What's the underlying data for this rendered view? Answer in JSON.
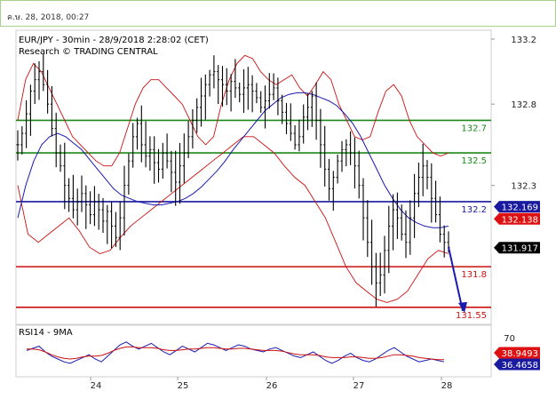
{
  "timestamp": "ค.ษ. 28, 2018, 00:27",
  "chart_data": {
    "type": "line",
    "title": "EUR/JPY - 30min - 28/9/2018 2:28:02 (CET)",
    "subtitle": "Research © TRADING CENTRAL",
    "x_labels": [
      "24",
      "25",
      "26",
      "27",
      "28"
    ],
    "price_axis": {
      "ticks": [
        "133.2",
        "132.8",
        "132.3"
      ],
      "ylim": [
        131.5,
        133.2
      ]
    },
    "levels": [
      {
        "label": "132.7",
        "value": 132.7,
        "color": "#1a8a1a"
      },
      {
        "label": "132.5",
        "value": 132.5,
        "color": "#1a8a1a"
      },
      {
        "label": "132.2",
        "value": 132.2,
        "color": "#1a1aa0"
      },
      {
        "label": "131.8",
        "value": 131.8,
        "color": "#cc1111"
      },
      {
        "label": "131.55",
        "value": 131.55,
        "color": "#cc1111"
      }
    ],
    "price_boxes": [
      {
        "label": "132.169",
        "value": 132.169,
        "color": "#1a1aa0"
      },
      {
        "label": "132.138",
        "value": 132.138,
        "color": "#dd1111"
      },
      {
        "label": "131.917",
        "value": 131.917,
        "color": "#000000"
      }
    ],
    "series": [
      {
        "name": "",
        "type": "price",
        "color": "#000000",
        "values": [
          132.55,
          132.62,
          132.74,
          132.88,
          132.95,
          133.0,
          132.92,
          132.8,
          132.65,
          132.5,
          132.42,
          132.3,
          132.22,
          132.15,
          132.2,
          132.25,
          132.18,
          132.12,
          132.2,
          132.15,
          132.08,
          132.14,
          132.05,
          131.98,
          132.1,
          132.3,
          132.45,
          132.6,
          132.68,
          132.55,
          132.48,
          132.52,
          132.44,
          132.4,
          132.5,
          132.45,
          132.38,
          132.32,
          132.42,
          132.5,
          132.6,
          132.7,
          132.78,
          132.85,
          132.92,
          132.98,
          133.0,
          132.95,
          132.92,
          132.88,
          132.94,
          132.9,
          132.86,
          132.9,
          132.92,
          132.88,
          132.84,
          132.78,
          132.82,
          132.86,
          132.9,
          132.82,
          132.75,
          132.68,
          132.62,
          132.55,
          132.6,
          132.72,
          132.78,
          132.85,
          132.7,
          132.55,
          132.4,
          132.28,
          132.35,
          132.45,
          132.52,
          132.55,
          132.5,
          132.42,
          132.3,
          132.1,
          131.95,
          131.8,
          131.7,
          131.75,
          131.9,
          132.05,
          132.15,
          132.1,
          132.0,
          131.95,
          132.1,
          132.25,
          132.35,
          132.42,
          132.35,
          132.22,
          132.12,
          132.0,
          131.95,
          131.92
        ],
        "range": [
          131.62,
          133.12
        ]
      },
      {
        "name": "",
        "type": "moving-average",
        "color": "#1a1ab0",
        "values": [
          132.1,
          132.3,
          132.45,
          132.55,
          132.6,
          132.62,
          132.6,
          132.56,
          132.52,
          132.46,
          132.4,
          132.34,
          132.28,
          132.24,
          132.22,
          132.2,
          132.19,
          132.18,
          132.18,
          132.19,
          132.2,
          132.22,
          132.25,
          132.29,
          132.34,
          132.39,
          132.45,
          132.52,
          132.58,
          132.64,
          132.7,
          132.76,
          132.8,
          132.84,
          132.86,
          132.87,
          132.87,
          132.86,
          132.84,
          132.82,
          132.79,
          132.74,
          132.68,
          132.6,
          132.5,
          132.4,
          132.3,
          132.22,
          132.15,
          132.1,
          132.07,
          132.05,
          132.04,
          132.04,
          132.05
        ]
      },
      {
        "name": "",
        "type": "bollinger-upper",
        "color": "#cc1111",
        "values": [
          132.7,
          132.95,
          133.05,
          133.0,
          132.9,
          132.8,
          132.7,
          132.6,
          132.55,
          132.5,
          132.45,
          132.42,
          132.42,
          132.5,
          132.65,
          132.8,
          132.9,
          132.95,
          132.95,
          132.9,
          132.85,
          132.8,
          132.7,
          132.6,
          132.55,
          132.6,
          132.8,
          132.95,
          133.05,
          133.1,
          133.08,
          133.0,
          132.95,
          132.92,
          132.95,
          132.98,
          132.9,
          132.85,
          132.92,
          133.0,
          132.95,
          132.8,
          132.7,
          132.6,
          132.58,
          132.6,
          132.75,
          132.88,
          132.92,
          132.85,
          132.7,
          132.6,
          132.55,
          132.5,
          132.48,
          132.5
        ]
      },
      {
        "name": "",
        "type": "bollinger-lower",
        "color": "#cc1111",
        "values": [
          132.3,
          132.0,
          131.95,
          132.0,
          132.05,
          132.1,
          132.02,
          131.92,
          131.88,
          131.9,
          131.98,
          132.05,
          132.1,
          132.15,
          132.2,
          132.25,
          132.3,
          132.35,
          132.4,
          132.45,
          132.5,
          132.55,
          132.6,
          132.6,
          132.55,
          132.5,
          132.42,
          132.35,
          132.3,
          132.2,
          132.1,
          131.95,
          131.8,
          131.7,
          131.65,
          131.6,
          131.58,
          131.6,
          131.65,
          131.75,
          131.85,
          131.9,
          131.88
        ]
      }
    ],
    "rsi": {
      "label": "RSI14 - 9MA",
      "ticks": [
        "70"
      ],
      "ylim": [
        20,
        80
      ],
      "boxes": [
        {
          "label": "38.9493",
          "value": 38.9493,
          "color": "#dd1111"
        },
        {
          "label": "36.4658",
          "value": 36.4658,
          "color": "#1a1aa0"
        }
      ],
      "series": [
        {
          "name": "",
          "type": "rsi",
          "color": "#1a1ab0",
          "values": [
            52,
            55,
            58,
            50,
            44,
            40,
            36,
            34,
            38,
            42,
            46,
            40,
            36,
            44,
            52,
            60,
            64,
            58,
            54,
            58,
            62,
            56,
            50,
            46,
            52,
            58,
            54,
            50,
            56,
            62,
            60,
            56,
            52,
            56,
            60,
            58,
            54,
            52,
            50,
            54,
            56,
            52,
            48,
            44,
            42,
            46,
            50,
            44,
            38,
            34,
            38,
            44,
            48,
            42,
            38,
            36,
            40,
            46,
            52,
            56,
            50,
            44,
            40,
            36,
            38,
            40,
            38,
            36
          ]
        },
        {
          "name": "",
          "type": "rsi-ma",
          "color": "#cc1111",
          "values": [
            54,
            54,
            53,
            50,
            46,
            43,
            41,
            40,
            41,
            43,
            44,
            44,
            45,
            48,
            52,
            55,
            57,
            57,
            56,
            56,
            56,
            55,
            53,
            52,
            52,
            53,
            54,
            54,
            55,
            56,
            56,
            55,
            54,
            54,
            55,
            55,
            54,
            53,
            52,
            52,
            52,
            51,
            49,
            47,
            46,
            46,
            46,
            45,
            43,
            42,
            42,
            42,
            43,
            43,
            42,
            41,
            41,
            42,
            44,
            46,
            46,
            45,
            44,
            42,
            41,
            40,
            39,
            39
          ]
        }
      ]
    }
  }
}
